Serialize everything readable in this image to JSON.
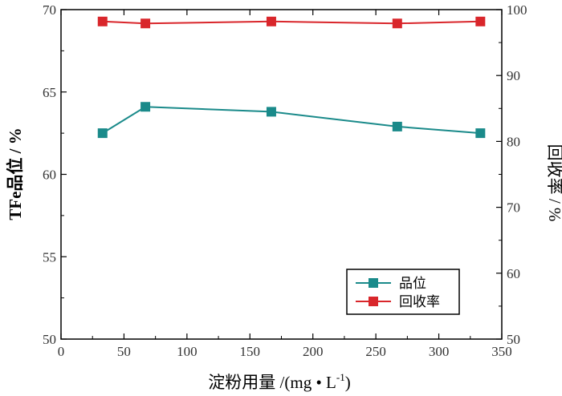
{
  "chart_data": {
    "type": "line",
    "title": "",
    "xlabel": "淀粉用量 /(mg • L",
    "xlabel_sup": "-1",
    "xlabel_close": ")",
    "ylabel_left": "TFe品位 / %",
    "ylabel_right": "回收率 / %",
    "xlim": [
      0,
      350
    ],
    "ylim_left": [
      50,
      70
    ],
    "ylim_right": [
      50,
      100
    ],
    "x_ticks": [
      0,
      50,
      100,
      150,
      200,
      250,
      300,
      350
    ],
    "y_left_ticks": [
      50,
      55,
      60,
      65,
      70
    ],
    "y_right_ticks": [
      50,
      60,
      70,
      80,
      90,
      100
    ],
    "x": [
      33,
      67,
      167,
      267,
      333
    ],
    "series": [
      {
        "name": "品位",
        "axis": "left",
        "color": "#1a8a8a",
        "marker": "square",
        "values": [
          62.5,
          64.1,
          63.8,
          62.9,
          62.5
        ]
      },
      {
        "name": "回收率",
        "axis": "right",
        "color": "#d9262b",
        "marker": "square",
        "values": [
          98.2,
          97.9,
          98.2,
          97.9,
          98.2
        ]
      }
    ],
    "legend": {
      "position": "bottom-right"
    },
    "grid": false
  }
}
